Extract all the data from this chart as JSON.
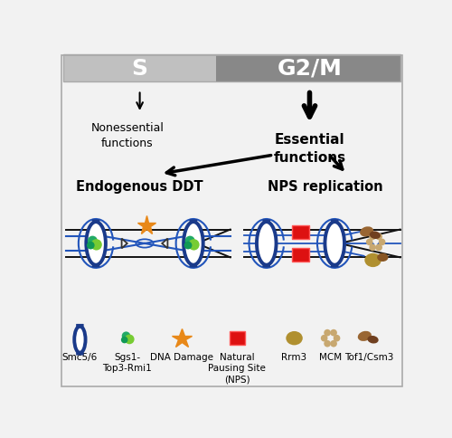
{
  "bg_color": "#f2f2f2",
  "header_s_color": "#c0c0c0",
  "header_g2m_color": "#888888",
  "header_s_text": "S",
  "header_g2m_text": "G2/M",
  "nonessential_text": "Nonessential\nfunctions",
  "essential_text": "Essential\nfunctions",
  "ddt_text": "Endogenous DDT",
  "nps_text": "NPS replication",
  "smc_color": "#1a3a8a",
  "blue_strand": "#2255bb",
  "black_strand": "#111111",
  "green_teal": "#22aa66",
  "green_lime": "#77cc33",
  "green_dark_teal": "#119955",
  "orange_star": "#e88818",
  "red_nps": "#dd1111",
  "rrm3_gold": "#b09030",
  "mcm_tan": "#c8a870",
  "tof1_brown": "#704020",
  "tof1_brown2": "#996633"
}
